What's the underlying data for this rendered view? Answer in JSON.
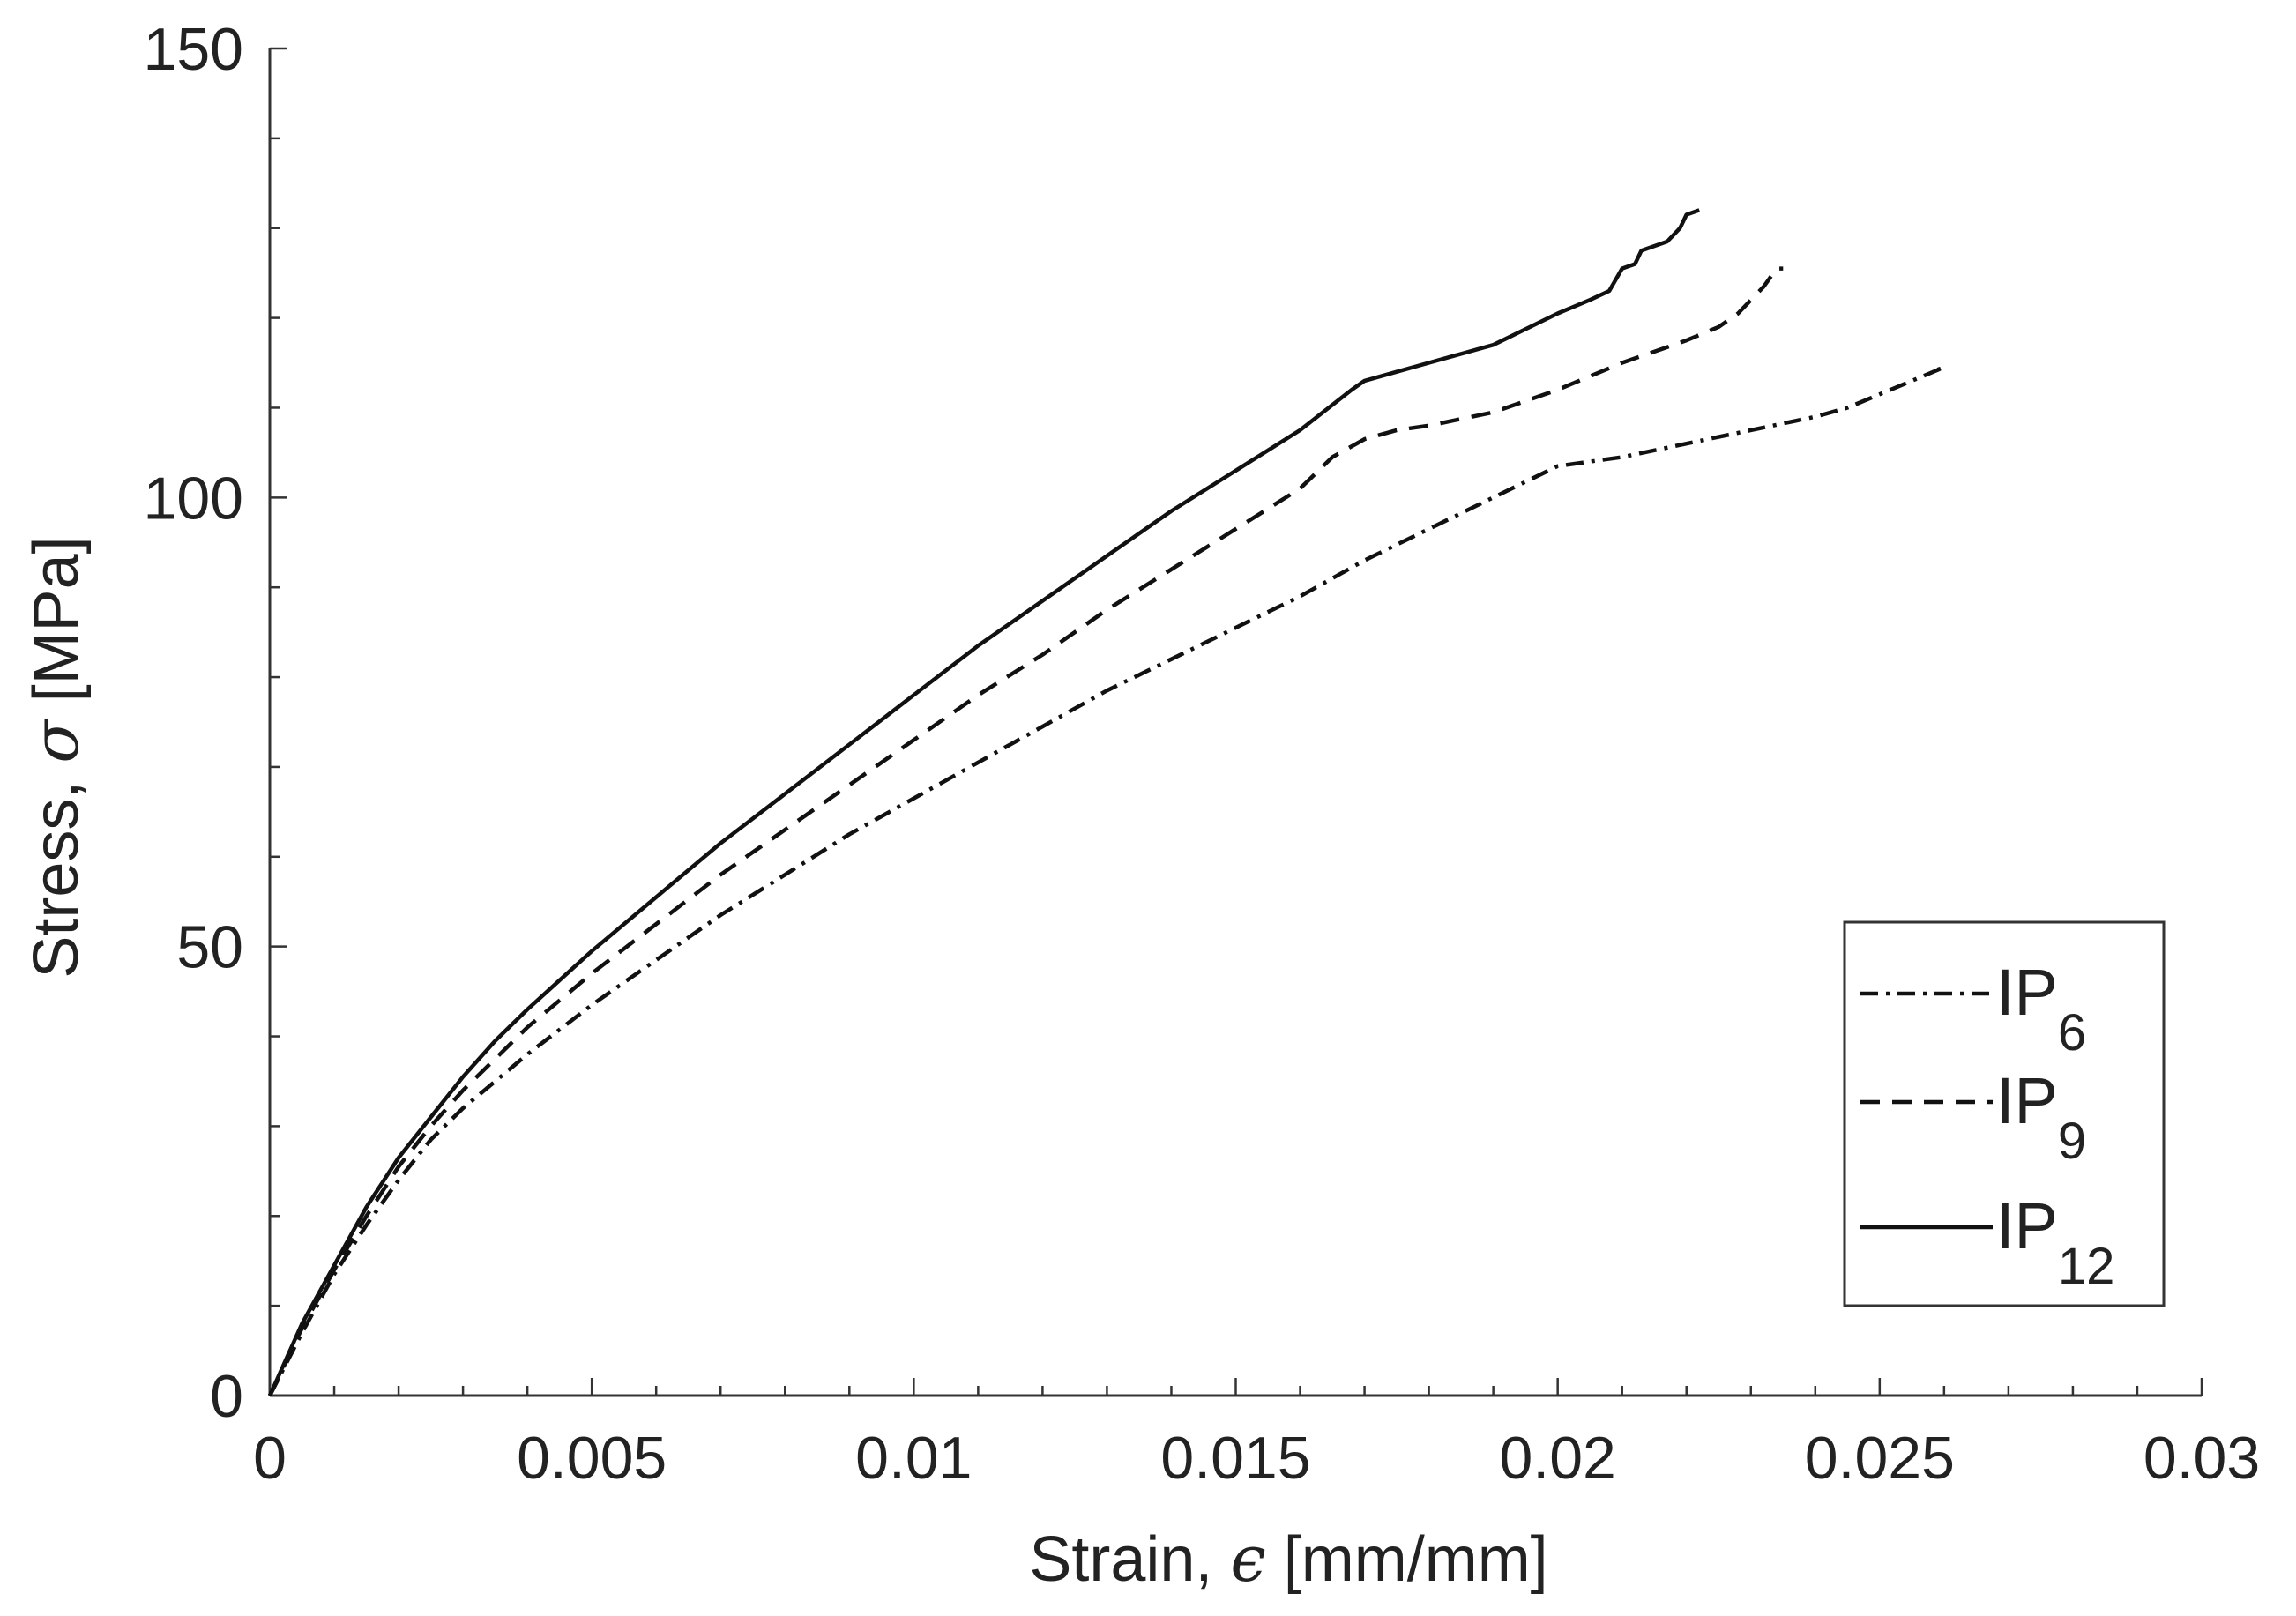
{
  "chart_data": {
    "type": "line",
    "title": "",
    "xlabel": {
      "prefix": "Strain, ",
      "symbol": "ϵ",
      "unit": " [mm/mm]"
    },
    "ylabel": {
      "prefix": "Stress, ",
      "symbol": "σ",
      "unit": " [MPa]"
    },
    "xlim": [
      0,
      0.03
    ],
    "ylim": [
      0,
      150
    ],
    "xticks": [
      0,
      0.005,
      0.01,
      0.015,
      0.02,
      0.025,
      0.03
    ],
    "xtick_labels": [
      "0",
      "0.005",
      "0.01",
      "0.015",
      "0.02",
      "0.025",
      "0.03"
    ],
    "yticks": [
      0,
      50,
      100,
      150
    ],
    "ytick_labels": [
      "0",
      "50",
      "100",
      "150"
    ],
    "x_minor_step": 0.001,
    "y_minor_step": 10,
    "grid": false,
    "legend_position": "bottom-right",
    "series": [
      {
        "name": "IP",
        "subscript": "6",
        "style": "dashdot",
        "points": [
          [
            0,
            0
          ],
          [
            0.0005,
            7
          ],
          [
            0.001,
            13.5
          ],
          [
            0.0015,
            19
          ],
          [
            0.002,
            24
          ],
          [
            0.0025,
            28.5
          ],
          [
            0.003,
            32
          ],
          [
            0.0035,
            35
          ],
          [
            0.004,
            38
          ],
          [
            0.005,
            43.5
          ],
          [
            0.006,
            48.5
          ],
          [
            0.007,
            53.5
          ],
          [
            0.008,
            58
          ],
          [
            0.009,
            62.5
          ],
          [
            0.01,
            66.5
          ],
          [
            0.011,
            70.5
          ],
          [
            0.012,
            74.5
          ],
          [
            0.013,
            78.5
          ],
          [
            0.014,
            82
          ],
          [
            0.015,
            85.5
          ],
          [
            0.016,
            89
          ],
          [
            0.017,
            93
          ],
          [
            0.018,
            96.5
          ],
          [
            0.019,
            100
          ],
          [
            0.02,
            103.5
          ],
          [
            0.0205,
            104
          ],
          [
            0.021,
            104.5
          ],
          [
            0.022,
            106
          ],
          [
            0.023,
            107.5
          ],
          [
            0.024,
            109
          ],
          [
            0.0245,
            110
          ],
          [
            0.025,
            111.5
          ],
          [
            0.0255,
            113
          ],
          [
            0.026,
            114.5
          ],
          [
            0.0258,
            114
          ]
        ]
      },
      {
        "name": "IP",
        "subscript": "9",
        "style": "dashed",
        "points": [
          [
            0,
            0
          ],
          [
            0.0005,
            7.5
          ],
          [
            0.001,
            14
          ],
          [
            0.0015,
            20
          ],
          [
            0.002,
            25.5
          ],
          [
            0.0025,
            30
          ],
          [
            0.003,
            34
          ],
          [
            0.0035,
            37.5
          ],
          [
            0.004,
            41
          ],
          [
            0.005,
            47
          ],
          [
            0.006,
            52.5
          ],
          [
            0.007,
            58
          ],
          [
            0.008,
            63
          ],
          [
            0.009,
            68
          ],
          [
            0.01,
            73
          ],
          [
            0.011,
            78
          ],
          [
            0.012,
            82.5
          ],
          [
            0.013,
            87.5
          ],
          [
            0.014,
            92
          ],
          [
            0.015,
            96.5
          ],
          [
            0.016,
            101
          ],
          [
            0.0165,
            104.5
          ],
          [
            0.017,
            106.5
          ],
          [
            0.0175,
            107.5
          ],
          [
            0.018,
            108
          ],
          [
            0.019,
            109.5
          ],
          [
            0.02,
            112
          ],
          [
            0.021,
            115
          ],
          [
            0.022,
            117.5
          ],
          [
            0.0225,
            119
          ],
          [
            0.0228,
            120.5
          ],
          [
            0.023,
            122
          ],
          [
            0.0232,
            123.5
          ],
          [
            0.0234,
            125.5
          ],
          [
            0.0235,
            125.5
          ]
        ]
      },
      {
        "name": "IP",
        "subscript": "12",
        "style": "solid",
        "points": [
          [
            0,
            0
          ],
          [
            0.0005,
            8
          ],
          [
            0.001,
            14.5
          ],
          [
            0.0015,
            21
          ],
          [
            0.002,
            26.5
          ],
          [
            0.0025,
            31
          ],
          [
            0.003,
            35.5
          ],
          [
            0.0035,
            39.5
          ],
          [
            0.004,
            43
          ],
          [
            0.005,
            49.5
          ],
          [
            0.006,
            55.5
          ],
          [
            0.007,
            61.5
          ],
          [
            0.008,
            67
          ],
          [
            0.009,
            72.5
          ],
          [
            0.01,
            78
          ],
          [
            0.011,
            83.5
          ],
          [
            0.012,
            88.5
          ],
          [
            0.013,
            93.5
          ],
          [
            0.014,
            98.5
          ],
          [
            0.015,
            103
          ],
          [
            0.016,
            107.5
          ],
          [
            0.0168,
            112
          ],
          [
            0.017,
            113
          ],
          [
            0.0175,
            114
          ],
          [
            0.018,
            115
          ],
          [
            0.019,
            117
          ],
          [
            0.02,
            120.5
          ],
          [
            0.0205,
            122
          ],
          [
            0.0208,
            123
          ],
          [
            0.021,
            125.5
          ],
          [
            0.0212,
            126
          ],
          [
            0.0213,
            127.5
          ],
          [
            0.0215,
            128
          ],
          [
            0.0217,
            128.5
          ],
          [
            0.0219,
            130
          ],
          [
            0.022,
            131.5
          ],
          [
            0.0222,
            132
          ]
        ]
      }
    ]
  }
}
